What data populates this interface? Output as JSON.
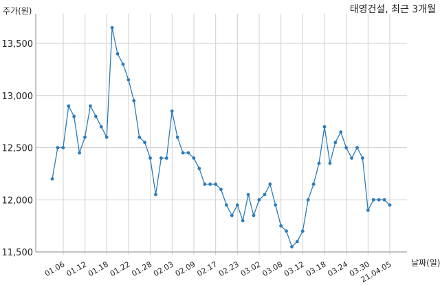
{
  "chart_data": {
    "type": "line",
    "title": "태영건설, 최근 3개월",
    "ylabel": "주가(원)",
    "xlabel": "날짜(일)",
    "ylim": [
      11500,
      13700
    ],
    "yticks": [
      11500,
      12000,
      12500,
      13000,
      13500
    ],
    "ytick_labels": [
      "11,500",
      "12,000",
      "12,500",
      "13,000",
      "13,500"
    ],
    "xticks": [
      "01.06",
      "01.12",
      "01.18",
      "01.22",
      "01.28",
      "02.03",
      "02.09",
      "02.17",
      "02.23",
      "03.02",
      "03.08",
      "03.12",
      "03.18",
      "03.24",
      "03.30",
      "21.04.05"
    ],
    "grid": true,
    "line_color": "#2b7bb9",
    "series": [
      {
        "values": [
          12200,
          12500,
          12500,
          12900,
          12800,
          12450,
          12600,
          12900,
          12800,
          12700,
          12600,
          13650,
          13400,
          13300,
          13150,
          12950,
          12600,
          12550,
          12400,
          12050,
          12400,
          12400,
          12850,
          12600,
          12450,
          12450,
          12400,
          12300,
          12150,
          12150,
          12150,
          12100,
          11950,
          11850,
          11950,
          11800,
          12050,
          11850,
          12000,
          12050,
          12150,
          11950,
          11750,
          11700,
          11550,
          11600,
          11700,
          12000,
          12150,
          12350,
          12700,
          12350,
          12550,
          12650,
          12500,
          12400,
          12500,
          12400,
          11900,
          12000,
          12000,
          12000,
          11950
        ]
      }
    ]
  }
}
